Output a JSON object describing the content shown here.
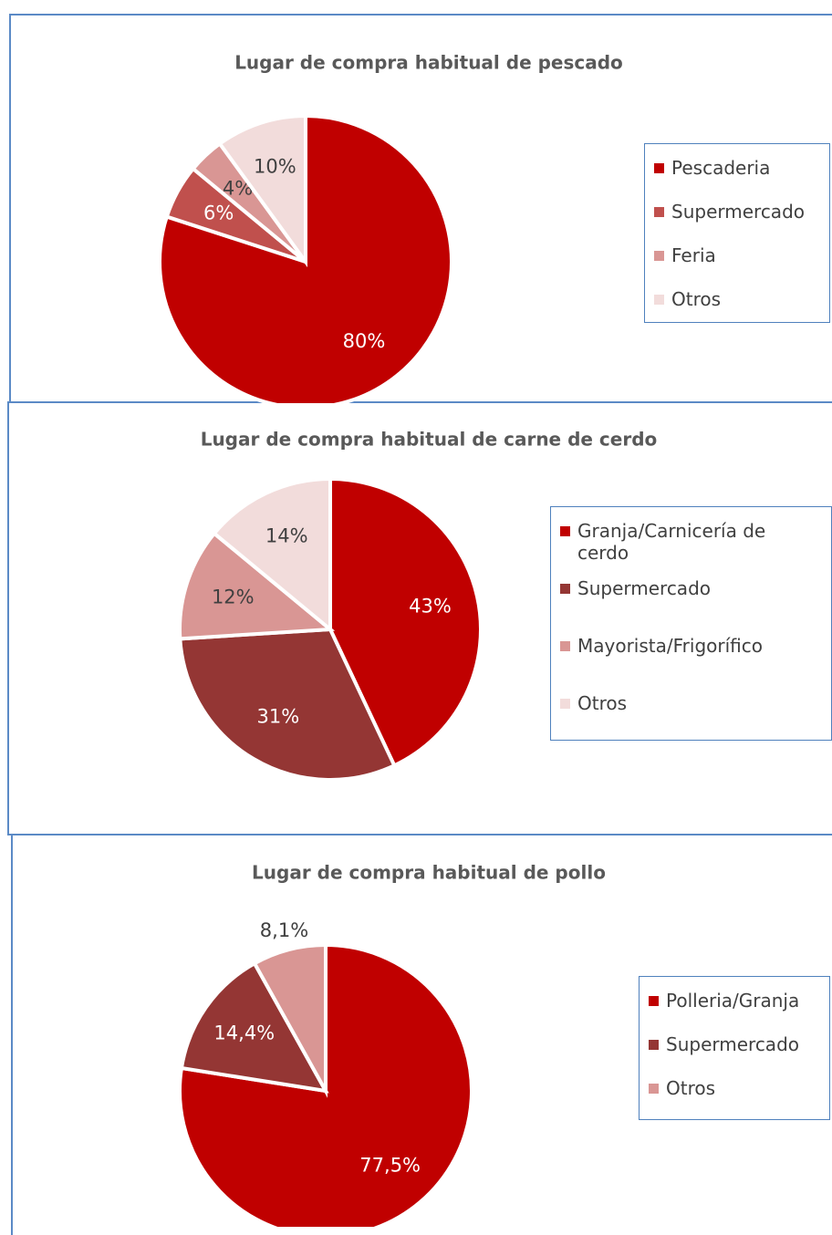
{
  "chart_data": [
    {
      "type": "pie",
      "title": "Lugar de compra habitual de pescado",
      "categories": [
        "Pescaderia",
        "Supermercado",
        "Feria",
        "Otros"
      ],
      "values": [
        80,
        6,
        4,
        10
      ],
      "value_labels": [
        "80%",
        "6%",
        "4%",
        "10%"
      ],
      "colors": [
        "#c00000",
        "#c0504d",
        "#d99694",
        "#f2dcdb"
      ],
      "legend": "right"
    },
    {
      "type": "pie",
      "title": "Lugar de compra habitual de carne de cerdo",
      "categories": [
        "Granja/Carnicería de cerdo",
        "Supermercado",
        "Mayorista/Frigorífico",
        "Otros"
      ],
      "values": [
        43,
        31,
        12,
        14
      ],
      "value_labels": [
        "43%",
        "31%",
        "12%",
        "14%"
      ],
      "colors": [
        "#c00000",
        "#943634",
        "#d99694",
        "#f2dcdb"
      ],
      "legend": "right"
    },
    {
      "type": "pie",
      "title": "Lugar de compra habitual de pollo",
      "categories": [
        "Polleria/Granja",
        "Supermercado",
        "Otros"
      ],
      "values": [
        77.5,
        14.4,
        8.1
      ],
      "value_labels": [
        "77,5%",
        "14,4%",
        "8,1%"
      ],
      "colors": [
        "#c00000",
        "#943634",
        "#d99694"
      ],
      "legend": "right"
    }
  ]
}
